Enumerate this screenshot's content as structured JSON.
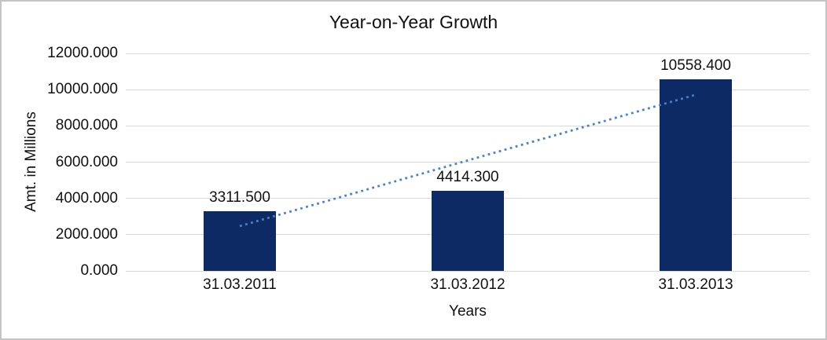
{
  "chart_data": {
    "type": "bar",
    "title": "Year-on-Year Growth",
    "xlabel": "Years",
    "ylabel": "Amt. in Millions",
    "categories": [
      "31.03.2011",
      "31.03.2012",
      "31.03.2013"
    ],
    "values": [
      3311.5,
      4414.3,
      10558.4
    ],
    "value_labels": [
      "3311.500",
      "4414.300",
      "10558.400"
    ],
    "ylim": [
      0,
      12000
    ],
    "y_tick_step": 2000,
    "y_tick_labels_top_to_bottom": [
      "12000.000",
      "10000.000",
      "8000.000",
      "6000.000",
      "4000.000",
      "2000.000",
      "0.000"
    ],
    "grid": true,
    "legend": false,
    "bar_label_position": "above-bar",
    "trendline": {
      "present": true,
      "fit": "linear",
      "style": "dotted",
      "spans": "first-to-last-category-center",
      "color": "#4D81C3"
    },
    "colors": {
      "bar": "#0E2A64",
      "gridline": "#D9D9D9",
      "text": "#111111",
      "trendline": "#4D81C3",
      "frame_border": "#C4C4C4",
      "background": "#FFFFFF"
    }
  }
}
